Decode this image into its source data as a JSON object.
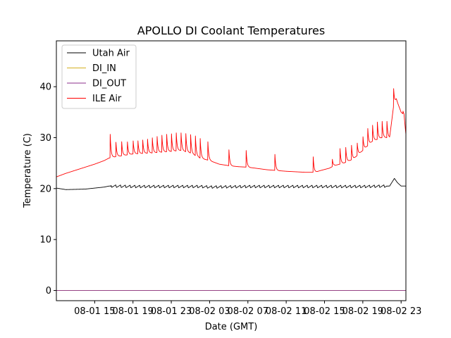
{
  "chart_data": {
    "type": "line",
    "title": "APOLLO DI Coolant Temperatures",
    "xlabel": "Date (GMT)",
    "ylabel": "Temperature (C)",
    "x_unit": "hours since 08-01 11:00 GMT",
    "xlim": [
      0,
      36.5
    ],
    "ylim": [
      -2,
      49
    ],
    "yticks": [
      0,
      10,
      20,
      30,
      40
    ],
    "xticks": [
      {
        "x": 4,
        "label": "08-01 15"
      },
      {
        "x": 8,
        "label": "08-01 19"
      },
      {
        "x": 12,
        "label": "08-01 23"
      },
      {
        "x": 16,
        "label": "08-02 03"
      },
      {
        "x": 20,
        "label": "08-02 07"
      },
      {
        "x": 24,
        "label": "08-02 11"
      },
      {
        "x": 28,
        "label": "08-02 15"
      },
      {
        "x": 32,
        "label": "08-02 19"
      },
      {
        "x": 36,
        "label": "08-02 23"
      }
    ],
    "legend_position": "top-left",
    "series": [
      {
        "name": "Utah Air",
        "color": "#000000",
        "points": [
          [
            0,
            20.1
          ],
          [
            1,
            19.8
          ],
          [
            3,
            19.9
          ],
          [
            5,
            20.3
          ],
          [
            5.5,
            20.5
          ],
          [
            8,
            20.4
          ],
          [
            12,
            20.4
          ],
          [
            15,
            20.4
          ],
          [
            16,
            20.3
          ],
          [
            20,
            20.4
          ],
          [
            24,
            20.4
          ],
          [
            28,
            20.4
          ],
          [
            32,
            20.4
          ],
          [
            34.8,
            20.5
          ],
          [
            35.3,
            22.0
          ],
          [
            35.6,
            21.2
          ],
          [
            36,
            20.5
          ],
          [
            36.5,
            20.5
          ]
        ],
        "oscillation": {
          "start": 5.7,
          "end": 34.5,
          "period": 0.5,
          "amplitude": 0.5
        }
      },
      {
        "name": "DI_IN",
        "color": "#d4b020",
        "points": [
          [
            0,
            0
          ],
          [
            36.5,
            0
          ]
        ]
      },
      {
        "name": "DI_OUT",
        "color": "#8b2f8b",
        "points": [
          [
            0,
            0
          ],
          [
            36.5,
            0
          ]
        ]
      },
      {
        "name": "ILE Air",
        "color": "#ff0000",
        "points": [
          [
            0,
            22.3
          ],
          [
            1,
            23.0
          ],
          [
            2,
            23.6
          ],
          [
            3,
            24.2
          ],
          [
            4,
            24.8
          ],
          [
            5,
            25.5
          ],
          [
            5.5,
            26.0
          ],
          [
            6,
            26.2
          ],
          [
            8,
            26.8
          ],
          [
            10,
            27.0
          ],
          [
            12,
            27.3
          ],
          [
            13,
            27.5
          ],
          [
            14,
            27.0
          ],
          [
            15,
            26.0
          ],
          [
            16,
            25.5
          ],
          [
            17,
            24.8
          ],
          [
            18,
            24.5
          ],
          [
            19,
            24.3
          ],
          [
            20,
            24.2
          ],
          [
            22,
            23.7
          ],
          [
            24,
            23.4
          ],
          [
            26,
            23.2
          ],
          [
            27,
            23.2
          ],
          [
            27.5,
            23.5
          ],
          [
            28.5,
            24.0
          ],
          [
            29,
            24.5
          ],
          [
            30,
            25.0
          ],
          [
            31,
            25.8
          ],
          [
            32,
            27.5
          ],
          [
            33,
            29.3
          ],
          [
            34,
            30.0
          ],
          [
            34.8,
            30.0
          ],
          [
            35.2,
            36.0
          ],
          [
            35.5,
            37.5
          ],
          [
            36,
            35.0
          ],
          [
            36.3,
            34.5
          ],
          [
            36.5,
            30.6
          ]
        ],
        "spikes": [
          {
            "x": 5.6,
            "peak": 31.8
          },
          {
            "x": 6.2,
            "peak": 29.8
          },
          {
            "x": 6.8,
            "peak": 29.9
          },
          {
            "x": 7.4,
            "peak": 29.8
          },
          {
            "x": 8.0,
            "peak": 30.0
          },
          {
            "x": 8.5,
            "peak": 30.0
          },
          {
            "x": 9.0,
            "peak": 30.2
          },
          {
            "x": 9.5,
            "peak": 30.4
          },
          {
            "x": 10.0,
            "peak": 30.7
          },
          {
            "x": 10.5,
            "peak": 31.0
          },
          {
            "x": 11.0,
            "peak": 31.3
          },
          {
            "x": 11.5,
            "peak": 31.5
          },
          {
            "x": 12.0,
            "peak": 31.6
          },
          {
            "x": 12.5,
            "peak": 31.8
          },
          {
            "x": 13.0,
            "peak": 31.8
          },
          {
            "x": 13.5,
            "peak": 31.7
          },
          {
            "x": 14.0,
            "peak": 31.5
          },
          {
            "x": 14.5,
            "peak": 31.3
          },
          {
            "x": 15.0,
            "peak": 30.8
          },
          {
            "x": 15.8,
            "peak": 30.1
          },
          {
            "x": 18.0,
            "peak": 28.4
          },
          {
            "x": 19.8,
            "peak": 28.3
          },
          {
            "x": 22.8,
            "peak": 27.5
          },
          {
            "x": 26.8,
            "peak": 27.0
          },
          {
            "x": 28.8,
            "peak": 26.1
          },
          {
            "x": 29.6,
            "peak": 28.6
          },
          {
            "x": 30.2,
            "peak": 28.8
          },
          {
            "x": 30.8,
            "peak": 29.2
          },
          {
            "x": 31.4,
            "peak": 29.5
          },
          {
            "x": 32.0,
            "peak": 30.8
          },
          {
            "x": 32.5,
            "peak": 32.6
          },
          {
            "x": 33.0,
            "peak": 33.2
          },
          {
            "x": 33.5,
            "peak": 33.9
          },
          {
            "x": 34.0,
            "peak": 34.0
          },
          {
            "x": 34.5,
            "peak": 34.0
          },
          {
            "x": 35.2,
            "peak": 40.4
          },
          {
            "x": 36.2,
            "peak": 35.2
          }
        ]
      }
    ]
  }
}
